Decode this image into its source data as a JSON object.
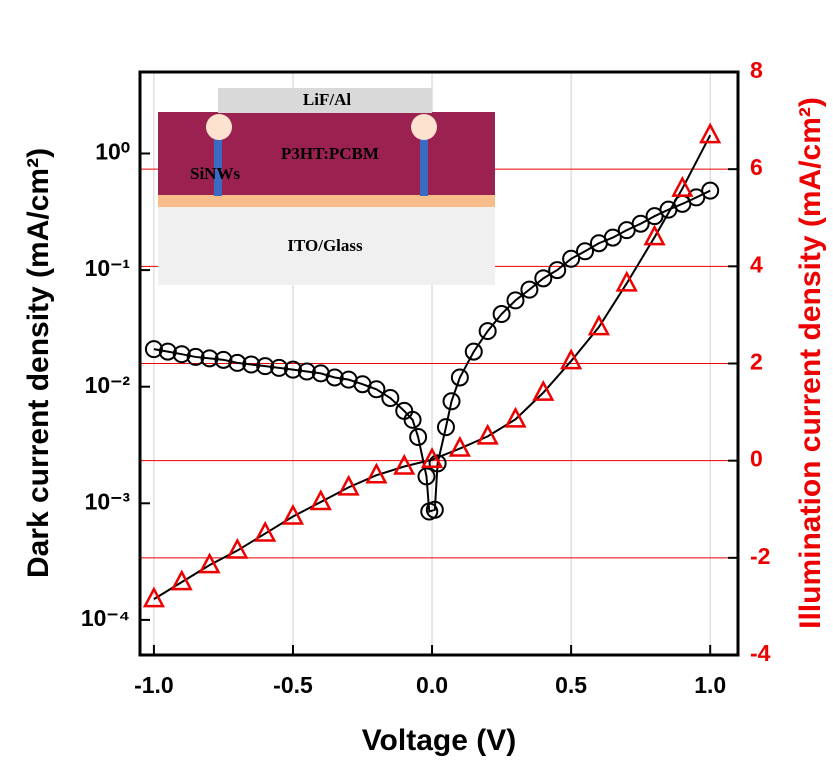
{
  "chart_data": {
    "type": "line",
    "xlabel": "Voltage (V)",
    "ylabel": "Dark current density (mA/cm²)",
    "y2label": "Illumination current density (mA/cm²)",
    "y2color": "#ee0000",
    "xlim": [
      -1.05,
      1.1
    ],
    "xticks": [
      {
        "value": -1,
        "label": "-1.0"
      },
      {
        "value": -0.5,
        "label": "-0.5"
      },
      {
        "value": 0,
        "label": "0.0"
      },
      {
        "value": 0.5,
        "label": "0.5"
      },
      {
        "value": 1,
        "label": "1.0"
      }
    ],
    "ylog": true,
    "ylim": [
      5e-05,
      5
    ],
    "yticks": [
      {
        "value": 1,
        "label": "10⁰"
      },
      {
        "value": 0.1,
        "label": "10⁻¹"
      },
      {
        "value": 0.01,
        "label": "10⁻²"
      },
      {
        "value": 0.001,
        "label": "10⁻³"
      },
      {
        "value": 0.0001,
        "label": "10⁻⁴"
      }
    ],
    "y2lim": [
      -4,
      8
    ],
    "y2ticks": [
      -4,
      -2,
      0,
      2,
      4,
      6,
      8
    ],
    "grid": true,
    "annotations": [
      "LiF/Al",
      "P3HT:PCBM",
      "SiNWs",
      "ITO/Glass"
    ],
    "series": [
      {
        "color": "#000000",
        "marker": "circle",
        "axis": "y",
        "x": [
          -1,
          -0.95,
          -0.9,
          -0.85,
          -0.8,
          -0.75,
          -0.7,
          -0.65,
          -0.6,
          -0.55,
          -0.5,
          -0.45,
          -0.4,
          -0.35,
          -0.3,
          -0.25,
          -0.2,
          -0.15,
          -0.1,
          -0.07,
          -0.05,
          -0.02,
          -0.01,
          0.01,
          0.02,
          0.05,
          0.07,
          0.1,
          0.15,
          0.2,
          0.25,
          0.3,
          0.35,
          0.4,
          0.45,
          0.5,
          0.55,
          0.6,
          0.65,
          0.7,
          0.75,
          0.8,
          0.85,
          0.9,
          0.95,
          1.0
        ],
        "values": [
          0.021,
          0.02,
          0.019,
          0.018,
          0.0175,
          0.017,
          0.016,
          0.0155,
          0.015,
          0.0145,
          0.014,
          0.0135,
          0.013,
          0.012,
          0.0115,
          0.0105,
          0.0095,
          0.008,
          0.0062,
          0.0052,
          0.0037,
          0.0017,
          0.00085,
          0.00088,
          0.0022,
          0.0045,
          0.0075,
          0.012,
          0.02,
          0.03,
          0.042,
          0.055,
          0.068,
          0.085,
          0.1,
          0.125,
          0.145,
          0.17,
          0.19,
          0.22,
          0.25,
          0.29,
          0.33,
          0.37,
          0.42,
          0.48
        ]
      },
      {
        "color": "#ee0000",
        "marker": "triangle",
        "axis": "y2",
        "x": [
          -1,
          -0.9,
          -0.8,
          -0.7,
          -0.6,
          -0.5,
          -0.4,
          -0.3,
          -0.2,
          -0.1,
          0,
          0.1,
          0.2,
          0.3,
          0.4,
          0.5,
          0.6,
          0.7,
          0.8,
          0.9,
          1.0
        ],
        "values": [
          -2.85,
          -2.5,
          -2.15,
          -1.85,
          -1.5,
          -1.15,
          -0.85,
          -0.55,
          -0.3,
          -0.12,
          0.02,
          0.25,
          0.5,
          0.85,
          1.4,
          2.05,
          2.75,
          3.65,
          4.6,
          5.6,
          6.7
        ]
      }
    ]
  }
}
